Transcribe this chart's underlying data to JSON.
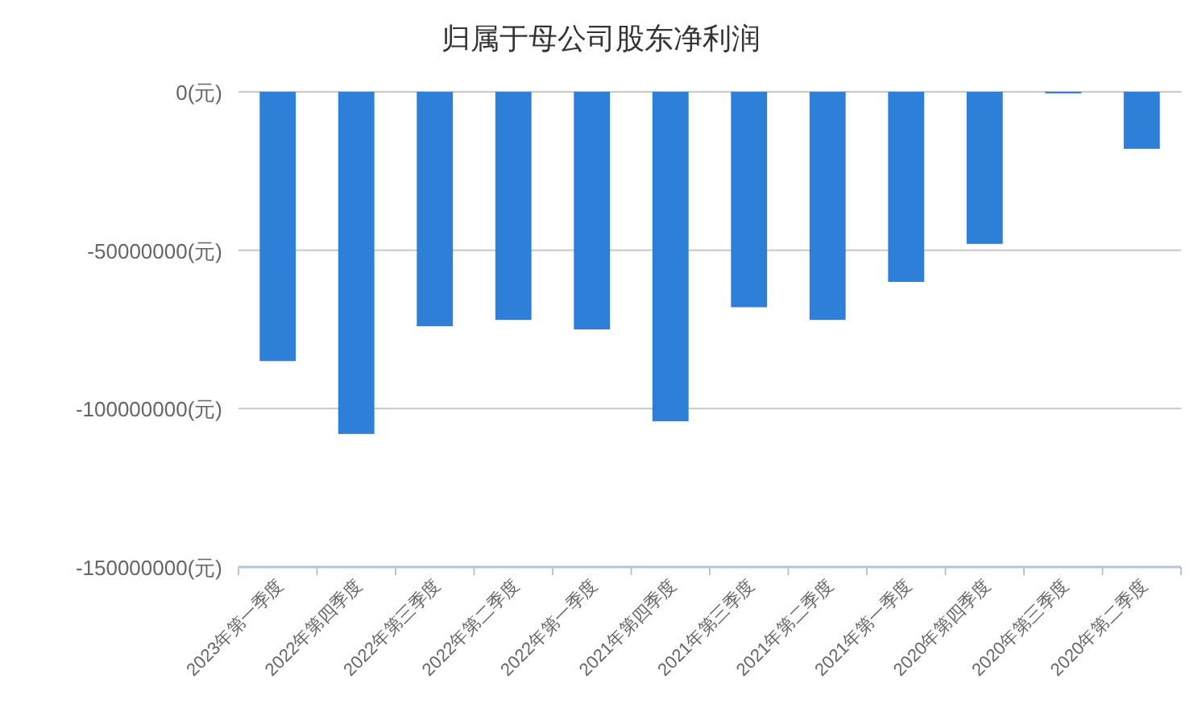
{
  "chart_data": {
    "type": "bar",
    "title": "归属于母公司股东净利润",
    "categories": [
      "2023年第一季度",
      "2022年第四季度",
      "2022年第三季度",
      "2022年第二季度",
      "2022年第一季度",
      "2021年第四季度",
      "2021年第三季度",
      "2021年第二季度",
      "2021年第一季度",
      "2020年第四季度",
      "2020年第三季度",
      "2020年第二季度"
    ],
    "values": [
      -85000000,
      -108000000,
      -74000000,
      -72000000,
      -75000000,
      -104000000,
      -68000000,
      -72000000,
      -60000000,
      -48000000,
      -500000,
      -18000000
    ],
    "color": "#2e7fd8",
    "ylim": [
      -150000000,
      0
    ],
    "yticks": [
      {
        "value": 0,
        "label": "0(元)"
      },
      {
        "value": -50000000,
        "label": "-50000000(元)"
      },
      {
        "value": -100000000,
        "label": "-100000000(元)"
      },
      {
        "value": -150000000,
        "label": "-150000000(元)"
      }
    ],
    "grid": "y"
  }
}
